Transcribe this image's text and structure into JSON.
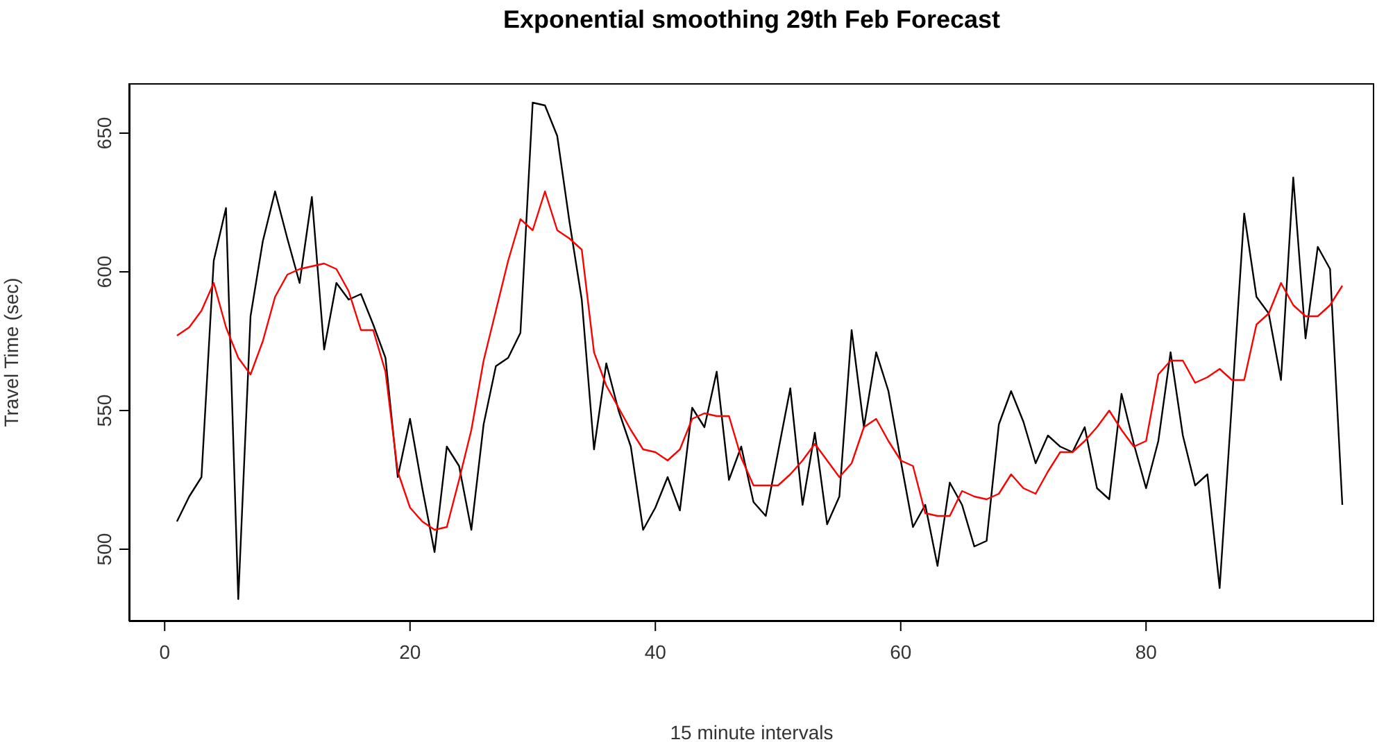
{
  "chart_data": {
    "type": "line",
    "title": "Exponential smoothing 29th Feb Forecast",
    "xlabel": "15 minute intervals",
    "ylabel": "Travel Time (sec)",
    "x": [
      1,
      2,
      3,
      4,
      5,
      6,
      7,
      8,
      9,
      10,
      11,
      12,
      13,
      14,
      15,
      16,
      17,
      18,
      19,
      20,
      21,
      22,
      23,
      24,
      25,
      26,
      27,
      28,
      29,
      30,
      31,
      32,
      33,
      34,
      35,
      36,
      37,
      38,
      39,
      40,
      41,
      42,
      43,
      44,
      45,
      46,
      47,
      48,
      49,
      50,
      51,
      52,
      53,
      54,
      55,
      56,
      57,
      58,
      59,
      60,
      61,
      62,
      63,
      64,
      65,
      66,
      67,
      68,
      69,
      70,
      71,
      72,
      73,
      74,
      75,
      76,
      77,
      78,
      79,
      80,
      81,
      82,
      83,
      84,
      85,
      86,
      87,
      88,
      89,
      90,
      91,
      92,
      93,
      94,
      95,
      96
    ],
    "series": [
      {
        "color": "#000000",
        "values": [
          510,
          519,
          526,
          604,
          623,
          482,
          584,
          611,
          629,
          612,
          596,
          627,
          572,
          596,
          590,
          592,
          581,
          569,
          526,
          547,
          522,
          499,
          537,
          530,
          507,
          545,
          566,
          569,
          578,
          661,
          660,
          649,
          618,
          590,
          536,
          567,
          550,
          537,
          507,
          515,
          526,
          514,
          551,
          544,
          564,
          525,
          537,
          517,
          512,
          535,
          558,
          516,
          542,
          509,
          519,
          579,
          544,
          571,
          557,
          532,
          508,
          516,
          494,
          524,
          516,
          501,
          503,
          545,
          557,
          546,
          531,
          541,
          537,
          535,
          544,
          522,
          518,
          556,
          538,
          522,
          539,
          571,
          541,
          523,
          527,
          486,
          553,
          621,
          591,
          585,
          561,
          634,
          576,
          609,
          601,
          516
        ]
      },
      {
        "color": "#ff0000",
        "values": [
          577,
          580,
          586,
          596,
          580,
          569,
          563,
          575,
          591,
          599,
          601,
          602,
          603,
          601,
          593,
          579,
          579,
          564,
          528,
          515,
          510,
          507,
          508,
          525,
          543,
          568,
          586,
          604,
          619,
          615,
          629,
          615,
          612,
          608,
          571,
          559,
          551,
          543,
          536,
          535,
          532,
          536,
          547,
          549,
          548,
          548,
          533,
          523,
          523,
          523,
          527,
          532,
          538,
          532,
          526,
          531,
          544,
          547,
          539,
          532,
          530,
          513,
          512,
          512,
          521,
          519,
          518,
          520,
          527,
          522,
          520,
          528,
          535,
          535,
          539,
          544,
          550,
          543,
          537,
          539,
          563,
          568,
          568,
          560,
          562,
          565,
          561,
          561,
          581,
          585,
          596,
          588,
          584,
          584,
          588,
          595
        ]
      }
    ],
    "xlim": [
      -2.9,
      98.6
    ],
    "xticks": [
      0,
      20,
      40,
      60,
      80
    ],
    "ylim": [
      474,
      668
    ],
    "yticks": [
      500,
      550,
      600,
      650
    ],
    "grid": false,
    "legend": false
  }
}
